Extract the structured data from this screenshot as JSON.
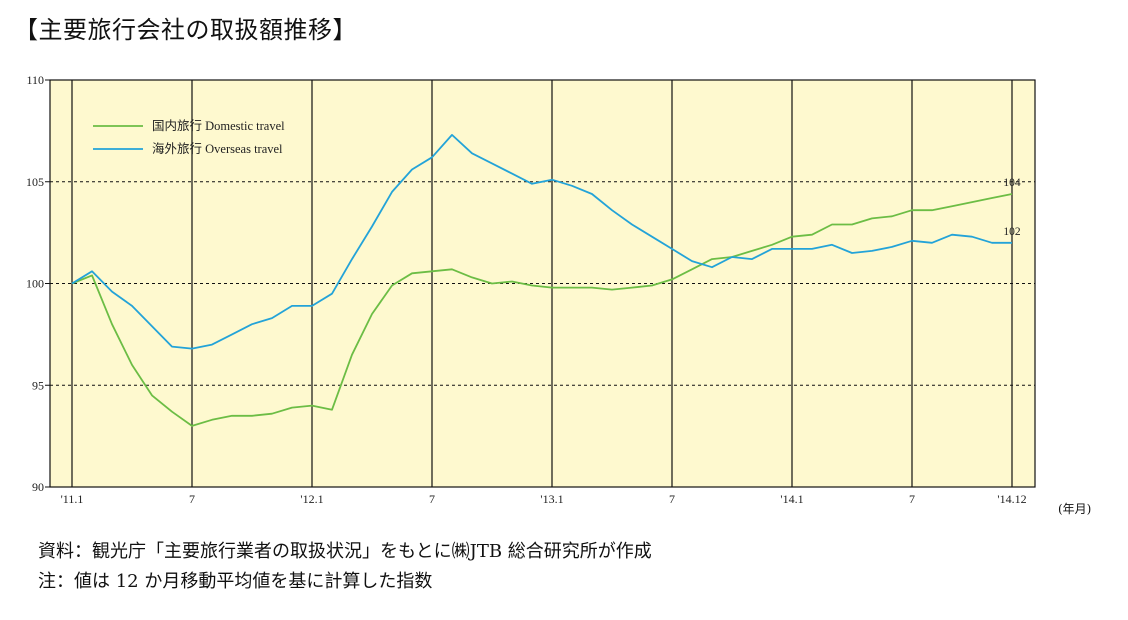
{
  "title": "【主要旅行会社の取扱額推移】",
  "unit_label": "(年月)",
  "notes": {
    "source": "資料：観光庁「主要旅行業者の取扱状況」をもとに㈱JTB 総合研究所が作成",
    "remark": "注：値は 12 か月移動平均値を基に計算した指数"
  },
  "colors": {
    "plot_background": "#fef9cf",
    "domestic": "#6cbd45",
    "overseas": "#23a3d8",
    "grid_dashed": "#111111",
    "grid_solid": "#111111"
  },
  "chart_data": {
    "type": "line",
    "title": "",
    "xlabel": "(年月)",
    "ylabel": "",
    "ylim": [
      90,
      110
    ],
    "yticks": [
      90,
      95,
      100,
      105,
      110
    ],
    "y_dashed_gridlines": [
      95,
      100,
      105
    ],
    "x_month_index_range": [
      0,
      47
    ],
    "x_tick_labels": [
      {
        "month": 0,
        "label": "'11.1"
      },
      {
        "month": 6,
        "label": "7"
      },
      {
        "month": 12,
        "label": "'12.1"
      },
      {
        "month": 18,
        "label": "7"
      },
      {
        "month": 24,
        "label": "'13.1"
      },
      {
        "month": 30,
        "label": "7"
      },
      {
        "month": 36,
        "label": "'14.1"
      },
      {
        "month": 42,
        "label": "7"
      },
      {
        "month": 47,
        "label": "'14.12"
      }
    ],
    "legend_position": "top-left",
    "series": [
      {
        "name": "国内旅行 Domestic travel",
        "color_key": "domestic",
        "end_label": "104",
        "values": [
          100.0,
          100.4,
          98.0,
          96.0,
          94.5,
          93.7,
          93.0,
          93.3,
          93.5,
          93.5,
          93.6,
          93.9,
          94.0,
          93.8,
          96.5,
          98.5,
          99.9,
          100.5,
          100.6,
          100.7,
          100.3,
          100.0,
          100.1,
          99.9,
          99.8,
          99.8,
          99.8,
          99.7,
          99.8,
          99.9,
          100.2,
          100.7,
          101.2,
          101.3,
          101.6,
          101.9,
          102.3,
          102.4,
          102.9,
          102.9,
          103.2,
          103.3,
          103.6,
          103.6,
          103.8,
          104.0,
          104.2,
          104.4
        ]
      },
      {
        "name": "海外旅行 Overseas travel",
        "color_key": "overseas",
        "end_label": "102",
        "values": [
          100.0,
          100.6,
          99.6,
          98.9,
          97.9,
          96.9,
          96.8,
          97.0,
          97.5,
          98.0,
          98.3,
          98.9,
          98.9,
          99.5,
          101.2,
          102.8,
          104.5,
          105.6,
          106.2,
          107.3,
          106.4,
          105.9,
          105.4,
          104.9,
          105.1,
          104.8,
          104.4,
          103.6,
          102.9,
          102.3,
          101.7,
          101.1,
          100.8,
          101.3,
          101.2,
          101.7,
          101.7,
          101.7,
          101.9,
          101.5,
          101.6,
          101.8,
          102.1,
          102.0,
          102.4,
          102.3,
          102.0,
          102.0
        ]
      }
    ]
  }
}
